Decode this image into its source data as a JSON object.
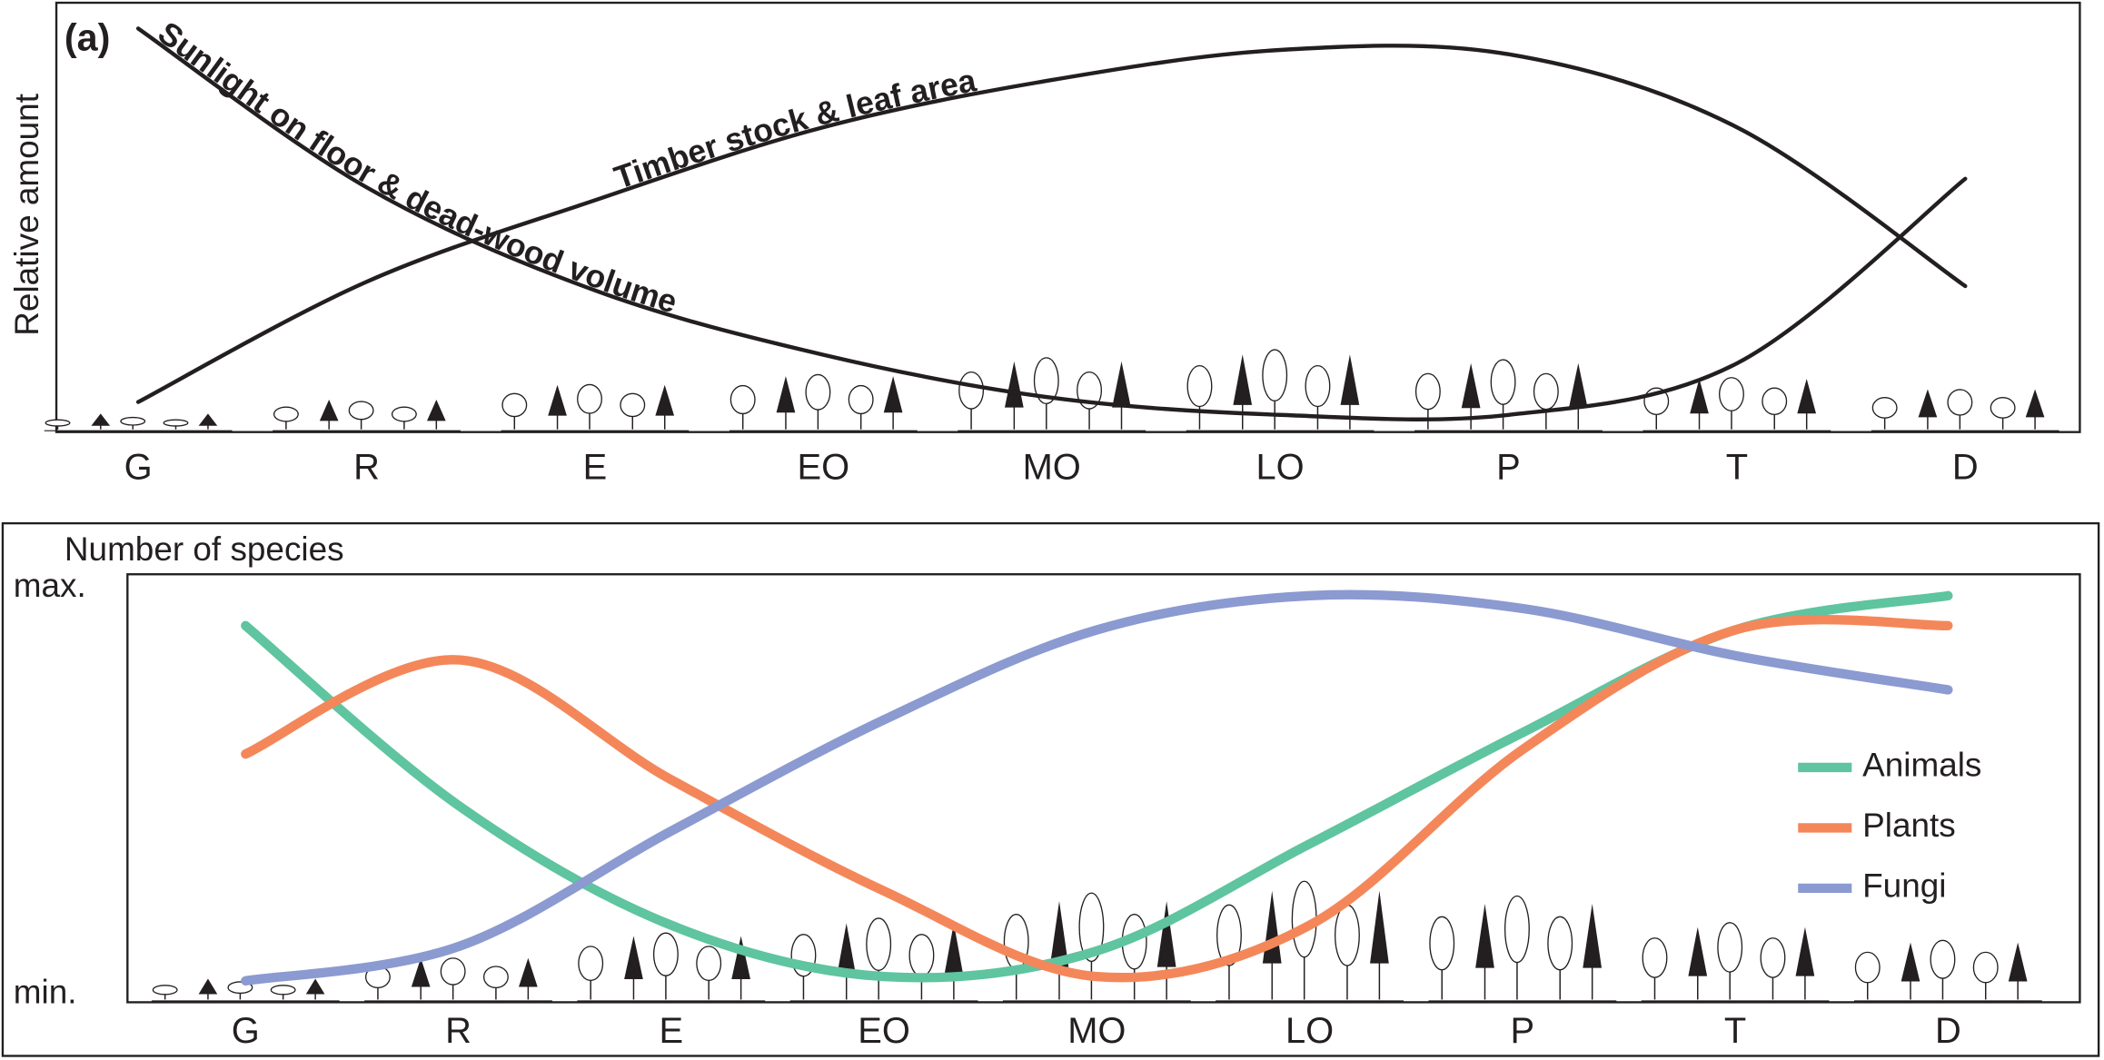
{
  "chart_data": [
    {
      "type": "line",
      "label": "(a)",
      "ylabel": "Relative amount",
      "categories": [
        "G",
        "R",
        "E",
        "EO",
        "MO",
        "LO",
        "P",
        "T",
        "D"
      ],
      "ylim": [
        0,
        1
      ],
      "series": [
        {
          "name": "Sunlight on floor & dead-wood volume",
          "color": "#231f20",
          "values": [
            0.94,
            0.57,
            0.33,
            0.18,
            0.08,
            0.04,
            0.04,
            0.16,
            0.59
          ]
        },
        {
          "name": "Timber stock & leaf area",
          "color": "#231f20",
          "values": [
            0.07,
            0.35,
            0.54,
            0.71,
            0.82,
            0.89,
            0.88,
            0.71,
            0.34
          ]
        }
      ]
    },
    {
      "type": "line",
      "title": "Number of species",
      "categories": [
        "G",
        "R",
        "E",
        "EO",
        "MO",
        "LO",
        "P",
        "T",
        "D"
      ],
      "ylim": [
        0,
        1
      ],
      "yticks": [
        {
          "value": 0,
          "label": "min."
        },
        {
          "value": 1,
          "label": "max."
        }
      ],
      "legend": "right",
      "series": [
        {
          "name": "Animals",
          "color": "#5fc4a0",
          "values": [
            0.88,
            0.46,
            0.18,
            0.06,
            0.12,
            0.37,
            0.63,
            0.87,
            0.95
          ]
        },
        {
          "name": "Plants",
          "color": "#f4875a",
          "values": [
            0.58,
            0.8,
            0.52,
            0.26,
            0.06,
            0.18,
            0.59,
            0.87,
            0.88
          ]
        },
        {
          "name": "Fungi",
          "color": "#8b9ad0",
          "values": [
            0.05,
            0.13,
            0.4,
            0.66,
            0.87,
            0.95,
            0.92,
            0.81,
            0.73
          ]
        }
      ]
    }
  ]
}
